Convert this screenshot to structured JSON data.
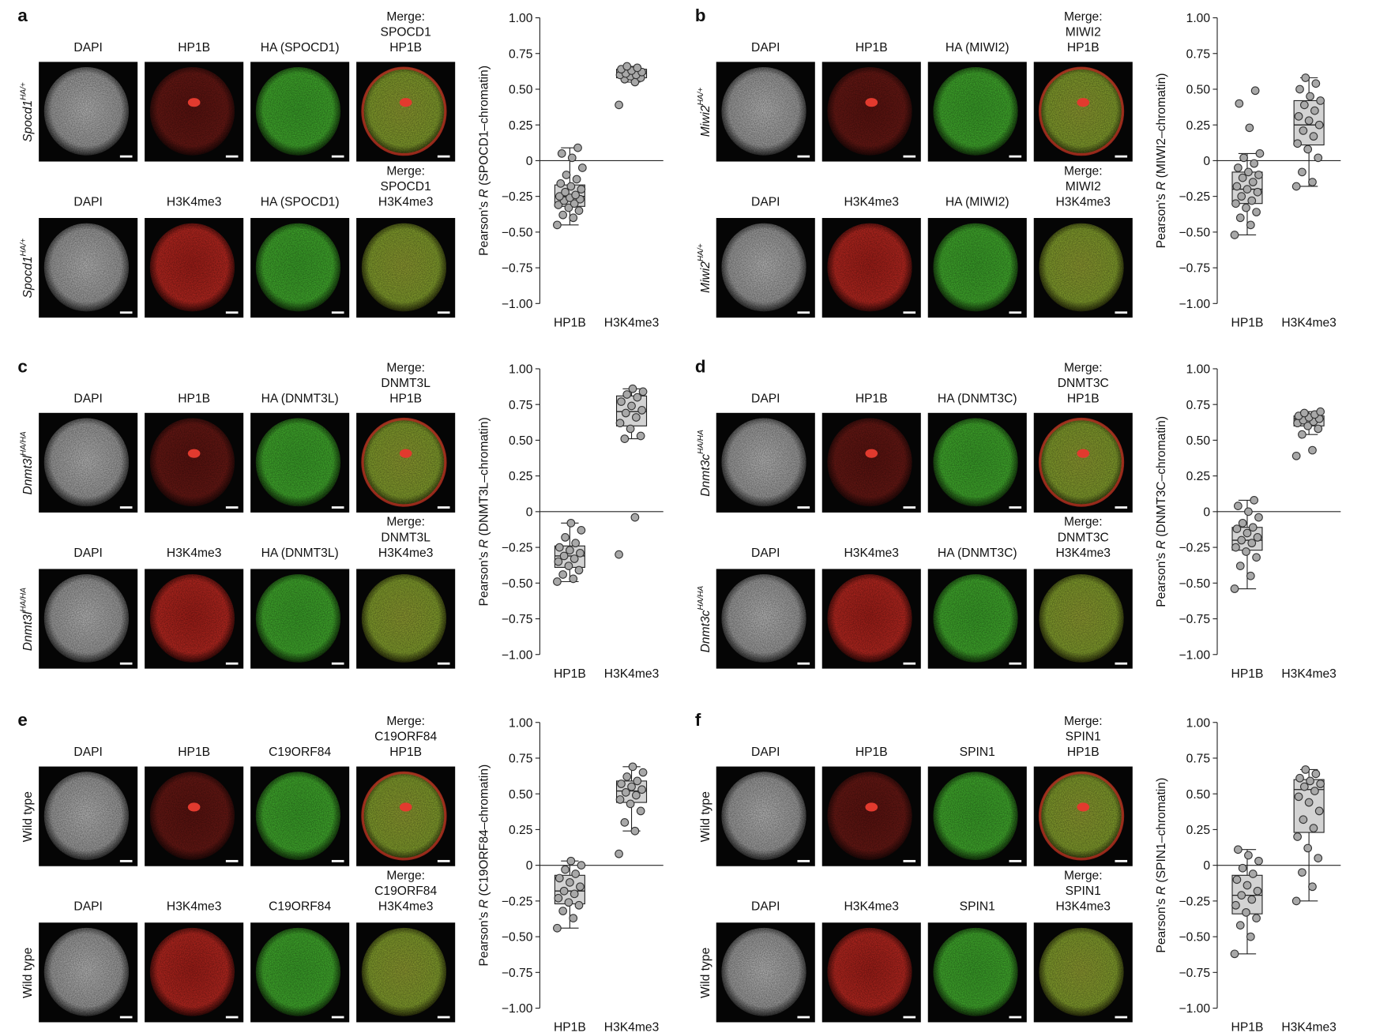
{
  "panels": [
    {
      "letter": "a",
      "rows": [
        {
          "genotype": "Spocd1",
          "sup": "HA/+",
          "labels": [
            [
              "DAPI"
            ],
            [
              "HP1B"
            ],
            [
              "HA (SPOCD1)"
            ],
            [
              "Merge:",
              "SPOCD1",
              "HP1B"
            ]
          ]
        },
        {
          "genotype": "Spocd1",
          "sup": "HA/+",
          "labels": [
            [
              "DAPI"
            ],
            [
              "H3K4me3"
            ],
            [
              "HA (SPOCD1)"
            ],
            [
              "Merge:",
              "SPOCD1",
              "H3K4me3"
            ]
          ]
        }
      ],
      "chart_data": {
        "type": "box",
        "ylabel": [
          "Pearson's ",
          "R",
          " (SPOCD1–chromatin)"
        ],
        "categories": [
          "HP1B",
          "H3K4me3"
        ],
        "color": "#d3d3d3",
        "ylim": [
          -1,
          1
        ],
        "yticks": [
          {
            "value": 1,
            "label": "1.00"
          },
          0.75,
          {
            "value": 0.5,
            "label": "0.50"
          },
          0.25,
          0,
          {
            "value": -0.25,
            "label": "−0.25"
          },
          {
            "value": -0.5,
            "label": "−0.50"
          },
          {
            "value": -0.75,
            "label": "−0.75"
          },
          {
            "value": -1,
            "label": "−1.00"
          }
        ],
        "boxes": [
          {
            "min": -0.45,
            "q1": -0.32,
            "median": -0.25,
            "q3": -0.17,
            "max": 0.09,
            "points": [
              -0.45,
              -0.4,
              -0.38,
              -0.35,
              -0.33,
              -0.31,
              -0.3,
              -0.28,
              -0.27,
              -0.26,
              -0.25,
              -0.24,
              -0.22,
              -0.2,
              -0.18,
              -0.16,
              -0.13,
              -0.1,
              -0.05,
              0.02,
              0.05,
              0.09
            ]
          },
          {
            "min": 0.55,
            "q1": 0.58,
            "median": 0.61,
            "q3": 0.64,
            "max": 0.66,
            "points": [
              0.39,
              0.55,
              0.57,
              0.58,
              0.59,
              0.6,
              0.6,
              0.61,
              0.62,
              0.63,
              0.64,
              0.65,
              0.66
            ]
          }
        ]
      }
    },
    {
      "letter": "b",
      "rows": [
        {
          "genotype": "Miwi2",
          "sup": "HA/+",
          "labels": [
            [
              "DAPI"
            ],
            [
              "HP1B"
            ],
            [
              "HA (MIWI2)"
            ],
            [
              "Merge:",
              "MIWI2",
              "HP1B"
            ]
          ]
        },
        {
          "genotype": "Miwi2",
          "sup": "HA/+",
          "labels": [
            [
              "DAPI"
            ],
            [
              "H3K4me3"
            ],
            [
              "HA (MIWI2)"
            ],
            [
              "Merge:",
              "MIWI2",
              "H3K4me3"
            ]
          ]
        }
      ],
      "chart_data": {
        "type": "box",
        "ylabel": [
          "Pearson's ",
          "R",
          " (MIWI2–chromatin)"
        ],
        "categories": [
          "HP1B",
          "H3K4me3"
        ],
        "color": "#d3d3d3",
        "ylim": [
          -1,
          1
        ],
        "yticks": [
          {
            "value": 1,
            "label": "1.00"
          },
          0.75,
          {
            "value": 0.5,
            "label": "0.50"
          },
          0.25,
          0,
          {
            "value": -0.25,
            "label": "−0.25"
          },
          {
            "value": -0.5,
            "label": "−0.50"
          },
          {
            "value": -0.75,
            "label": "−0.75"
          },
          {
            "value": -1,
            "label": "−1.00"
          }
        ],
        "boxes": [
          {
            "min": -0.52,
            "q1": -0.3,
            "median": -0.2,
            "q3": -0.08,
            "max": 0.05,
            "points": [
              -0.52,
              -0.45,
              -0.4,
              -0.36,
              -0.33,
              -0.3,
              -0.28,
              -0.25,
              -0.22,
              -0.2,
              -0.18,
              -0.15,
              -0.12,
              -0.1,
              -0.08,
              -0.05,
              -0.02,
              0.02,
              0.05,
              0.23,
              0.4,
              0.49
            ]
          },
          {
            "min": -0.18,
            "q1": 0.11,
            "median": 0.25,
            "q3": 0.42,
            "max": 0.58,
            "points": [
              -0.18,
              -0.15,
              -0.08,
              0.02,
              0.08,
              0.12,
              0.17,
              0.21,
              0.25,
              0.28,
              0.31,
              0.35,
              0.39,
              0.42,
              0.45,
              0.5,
              0.54,
              0.58
            ]
          }
        ]
      }
    },
    {
      "letter": "c",
      "rows": [
        {
          "genotype": "Dnmt3l",
          "sup": "HA/HA",
          "labels": [
            [
              "DAPI"
            ],
            [
              "HP1B"
            ],
            [
              "HA (DNMT3L)"
            ],
            [
              "Merge:",
              "DNMT3L",
              "HP1B"
            ]
          ]
        },
        {
          "genotype": "Dnmt3l",
          "sup": "HA/HA",
          "labels": [
            [
              "DAPI"
            ],
            [
              "H3K4me3"
            ],
            [
              "HA (DNMT3L)"
            ],
            [
              "Merge:",
              "DNMT3L",
              "H3K4me3"
            ]
          ]
        }
      ],
      "chart_data": {
        "type": "box",
        "ylabel": [
          "Pearson's ",
          "R",
          " (DNMT3L–chromatin)"
        ],
        "categories": [
          "HP1B",
          "H3K4me3"
        ],
        "color": "#d3d3d3",
        "ylim": [
          -1,
          1
        ],
        "yticks": [
          {
            "value": 1,
            "label": "1.00"
          },
          0.75,
          {
            "value": 0.5,
            "label": "0.50"
          },
          0.25,
          0,
          {
            "value": -0.25,
            "label": "−0.25"
          },
          {
            "value": -0.5,
            "label": "−0.50"
          },
          {
            "value": -0.75,
            "label": "−0.75"
          },
          {
            "value": -1,
            "label": "−1.00"
          }
        ],
        "boxes": [
          {
            "min": -0.49,
            "q1": -0.39,
            "median": -0.31,
            "q3": -0.24,
            "max": -0.08,
            "points": [
              -0.49,
              -0.47,
              -0.44,
              -0.41,
              -0.38,
              -0.35,
              -0.33,
              -0.31,
              -0.29,
              -0.27,
              -0.25,
              -0.22,
              -0.18,
              -0.13,
              -0.08
            ]
          },
          {
            "min": 0.51,
            "q1": 0.6,
            "median": 0.7,
            "q3": 0.81,
            "max": 0.86,
            "points": [
              -0.3,
              -0.04,
              0.51,
              0.53,
              0.58,
              0.62,
              0.66,
              0.69,
              0.71,
              0.74,
              0.77,
              0.8,
              0.82,
              0.84,
              0.86
            ]
          }
        ]
      }
    },
    {
      "letter": "d",
      "rows": [
        {
          "genotype": "Dnmt3c",
          "sup": "HA/HA",
          "labels": [
            [
              "DAPI"
            ],
            [
              "HP1B"
            ],
            [
              "HA (DNMT3C)"
            ],
            [
              "Merge:",
              "DNMT3C",
              "HP1B"
            ]
          ]
        },
        {
          "genotype": "Dnmt3c",
          "sup": "HA/HA",
          "labels": [
            [
              "DAPI"
            ],
            [
              "H3K4me3"
            ],
            [
              "HA (DNMT3C)"
            ],
            [
              "Merge:",
              "DNMT3C",
              "H3K4me3"
            ]
          ]
        }
      ],
      "chart_data": {
        "type": "box",
        "ylabel": [
          "Pearson's ",
          "R",
          " (DNMT3C–chromatin)"
        ],
        "categories": [
          "HP1B",
          "H3K4me3"
        ],
        "color": "#d3d3d3",
        "ylim": [
          -1,
          1
        ],
        "yticks": [
          {
            "value": 1,
            "label": "1.00"
          },
          0.75,
          {
            "value": 0.5,
            "label": "0.50"
          },
          0.25,
          0,
          {
            "value": -0.25,
            "label": "−0.25"
          },
          {
            "value": -0.5,
            "label": "−0.50"
          },
          {
            "value": -0.75,
            "label": "−0.75"
          },
          {
            "value": -1,
            "label": "−1.00"
          }
        ],
        "boxes": [
          {
            "min": -0.54,
            "q1": -0.27,
            "median": -0.2,
            "q3": -0.11,
            "max": 0.08,
            "points": [
              -0.54,
              -0.45,
              -0.38,
              -0.32,
              -0.28,
              -0.25,
              -0.22,
              -0.2,
              -0.18,
              -0.15,
              -0.12,
              -0.11,
              -0.08,
              -0.04,
              0.0,
              0.04,
              0.08
            ]
          },
          {
            "min": 0.54,
            "q1": 0.6,
            "median": 0.65,
            "q3": 0.67,
            "max": 0.7,
            "points": [
              0.39,
              0.43,
              0.54,
              0.58,
              0.6,
              0.62,
              0.63,
              0.64,
              0.65,
              0.66,
              0.67,
              0.68,
              0.69,
              0.7
            ]
          }
        ]
      }
    },
    {
      "letter": "e",
      "rows": [
        {
          "genotype": "Wild type",
          "labels": [
            [
              "DAPI"
            ],
            [
              "HP1B"
            ],
            [
              "C19ORF84"
            ],
            [
              "Merge:",
              "C19ORF84",
              "HP1B"
            ]
          ]
        },
        {
          "genotype": "Wild type",
          "labels": [
            [
              "DAPI"
            ],
            [
              "H3K4me3"
            ],
            [
              "C19ORF84"
            ],
            [
              "Merge:",
              "C19ORF84",
              "H3K4me3"
            ]
          ]
        }
      ],
      "chart_data": {
        "type": "box",
        "ylabel": [
          "Pearson's ",
          "R",
          " (C19ORF84–chromatin)"
        ],
        "categories": [
          "HP1B",
          "H3K4me3"
        ],
        "color": "#d3d3d3",
        "ylim": [
          -1,
          1
        ],
        "yticks": [
          {
            "value": 1,
            "label": "1.00"
          },
          0.75,
          {
            "value": 0.5,
            "label": "0.50"
          },
          0.25,
          0,
          {
            "value": -0.25,
            "label": "−0.25"
          },
          {
            "value": -0.5,
            "label": "−0.50"
          },
          {
            "value": -0.75,
            "label": "−0.75"
          },
          {
            "value": -1,
            "label": "−1.00"
          }
        ],
        "boxes": [
          {
            "min": -0.44,
            "q1": -0.27,
            "median": -0.18,
            "q3": -0.07,
            "max": 0.03,
            "points": [
              -0.44,
              -0.37,
              -0.32,
              -0.28,
              -0.26,
              -0.23,
              -0.2,
              -0.18,
              -0.15,
              -0.12,
              -0.09,
              -0.06,
              -0.03,
              0.0,
              0.03
            ]
          },
          {
            "min": 0.24,
            "q1": 0.44,
            "median": 0.52,
            "q3": 0.59,
            "max": 0.69,
            "points": [
              0.08,
              0.24,
              0.3,
              0.38,
              0.43,
              0.46,
              0.49,
              0.51,
              0.53,
              0.55,
              0.57,
              0.59,
              0.62,
              0.65,
              0.69
            ]
          }
        ]
      }
    },
    {
      "letter": "f",
      "rows": [
        {
          "genotype": "Wild type",
          "labels": [
            [
              "DAPI"
            ],
            [
              "HP1B"
            ],
            [
              "SPIN1"
            ],
            [
              "Merge:",
              "SPIN1",
              "HP1B"
            ]
          ]
        },
        {
          "genotype": "Wild type",
          "labels": [
            [
              "DAPI"
            ],
            [
              "H3K4me3"
            ],
            [
              "SPIN1"
            ],
            [
              "Merge:",
              "SPIN1",
              "H3K4me3"
            ]
          ]
        }
      ],
      "chart_data": {
        "type": "box",
        "ylabel": [
          "Pearson's ",
          "R",
          " (SPIN1–chromatin)"
        ],
        "categories": [
          "HP1B",
          "H3K4me3"
        ],
        "color": "#d3d3d3",
        "ylim": [
          -1,
          1
        ],
        "yticks": [
          {
            "value": 1,
            "label": "1.00"
          },
          0.75,
          {
            "value": 0.5,
            "label": "0.50"
          },
          0.25,
          0,
          {
            "value": -0.25,
            "label": "−0.25"
          },
          {
            "value": -0.5,
            "label": "−0.50"
          },
          {
            "value": -0.75,
            "label": "−0.75"
          },
          {
            "value": -1,
            "label": "−1.00"
          }
        ],
        "boxes": [
          {
            "min": -0.62,
            "q1": -0.34,
            "median": -0.21,
            "q3": -0.07,
            "max": 0.11,
            "points": [
              -0.62,
              -0.5,
              -0.42,
              -0.37,
              -0.33,
              -0.28,
              -0.24,
              -0.21,
              -0.18,
              -0.14,
              -0.1,
              -0.06,
              -0.02,
              0.03,
              0.07,
              0.11
            ]
          },
          {
            "min": -0.25,
            "q1": 0.23,
            "median": 0.53,
            "q3": 0.6,
            "max": 0.67,
            "points": [
              -0.25,
              -0.15,
              -0.05,
              0.05,
              0.12,
              0.2,
              0.26,
              0.32,
              0.38,
              0.44,
              0.48,
              0.52,
              0.55,
              0.57,
              0.59,
              0.61,
              0.64,
              0.67
            ]
          }
        ]
      }
    }
  ]
}
